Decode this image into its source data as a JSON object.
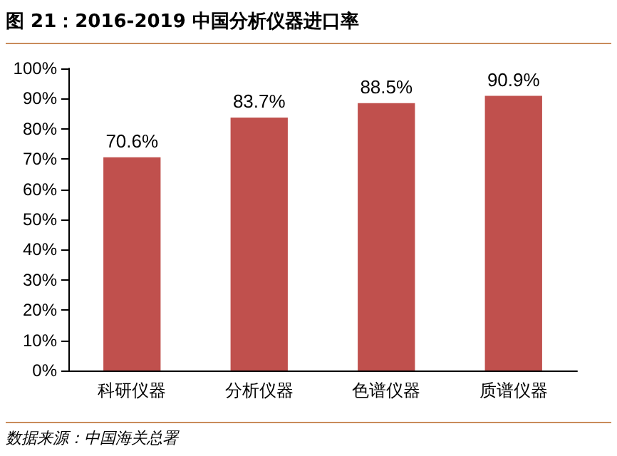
{
  "chart_data": {
    "type": "bar",
    "title": "图 21：2016-2019 中国分析仪器进口率",
    "categories": [
      "科研仪器",
      "分析仪器",
      "色谱仪器",
      "质谱仪器"
    ],
    "values": [
      70.6,
      83.7,
      88.5,
      90.9
    ],
    "color": "#c0504d",
    "value_labels": [
      "70.6%",
      "83.7%",
      "88.5%",
      "90.9%"
    ],
    "ylim": [
      0,
      100
    ],
    "yticks": [
      {
        "value": 0,
        "label": "0%"
      },
      {
        "value": 10,
        "label": "10%"
      },
      {
        "value": 20,
        "label": "20%"
      },
      {
        "value": 30,
        "label": "30%"
      },
      {
        "value": 40,
        "label": "40%"
      },
      {
        "value": 50,
        "label": "50%"
      },
      {
        "value": 60,
        "label": "60%"
      },
      {
        "value": 70,
        "label": "70%"
      },
      {
        "value": 80,
        "label": "80%"
      },
      {
        "value": 90,
        "label": "90%"
      },
      {
        "value": 100,
        "label": "100%"
      }
    ],
    "annotations": [
      "数据来源：中国海关总署"
    ],
    "grid": false
  }
}
